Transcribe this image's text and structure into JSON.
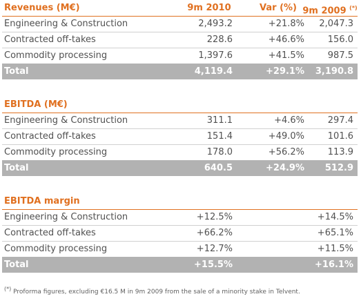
{
  "tables": [
    {
      "header": [
        "Revenues (M€)",
        "9m 2010",
        "Var (%)",
        "9m 2009"
      ],
      "header_note": "(*)",
      "rows": [
        [
          "Engineering & Construction",
          "2,493.2",
          "+21.8%",
          "2,047.3"
        ],
        [
          "Contracted off-takes",
          "228.6",
          "+46.6%",
          "156.0"
        ],
        [
          "Commodity processing",
          "1,397.6",
          "+41.5%",
          "987.5"
        ]
      ],
      "total": [
        "Total",
        "4,119.4",
        "+29.1%",
        "3,190.8"
      ]
    },
    {
      "header": [
        "EBITDA (M€)"
      ],
      "rows": [
        [
          "Engineering & Construction",
          "311.1",
          "+4.6%",
          "297.4"
        ],
        [
          "Contracted off-takes",
          "151.4",
          "+49.0%",
          "101.6"
        ],
        [
          "Commodity processing",
          "178.0",
          "+56.2%",
          "113.9"
        ]
      ],
      "total": [
        "Total",
        "640.5",
        "+24.9%",
        "512.9"
      ]
    },
    {
      "header": [
        "EBITDA margin"
      ],
      "rows": [
        [
          "Engineering & Construction",
          "+12.5%",
          "+14.5%"
        ],
        [
          "Contracted off-takes",
          "+66.2%",
          "+65.1%"
        ],
        [
          "Commodity processing",
          "+12.7%",
          "+11.5%"
        ]
      ],
      "total": [
        "Total",
        "+15.5%",
        "+16.1%"
      ]
    }
  ],
  "footnote": {
    "mark": "(*)",
    "text": "Proforma figures, excluding €16.5 M in 9m 2009 from the sale of a minority stake in Telvent."
  }
}
